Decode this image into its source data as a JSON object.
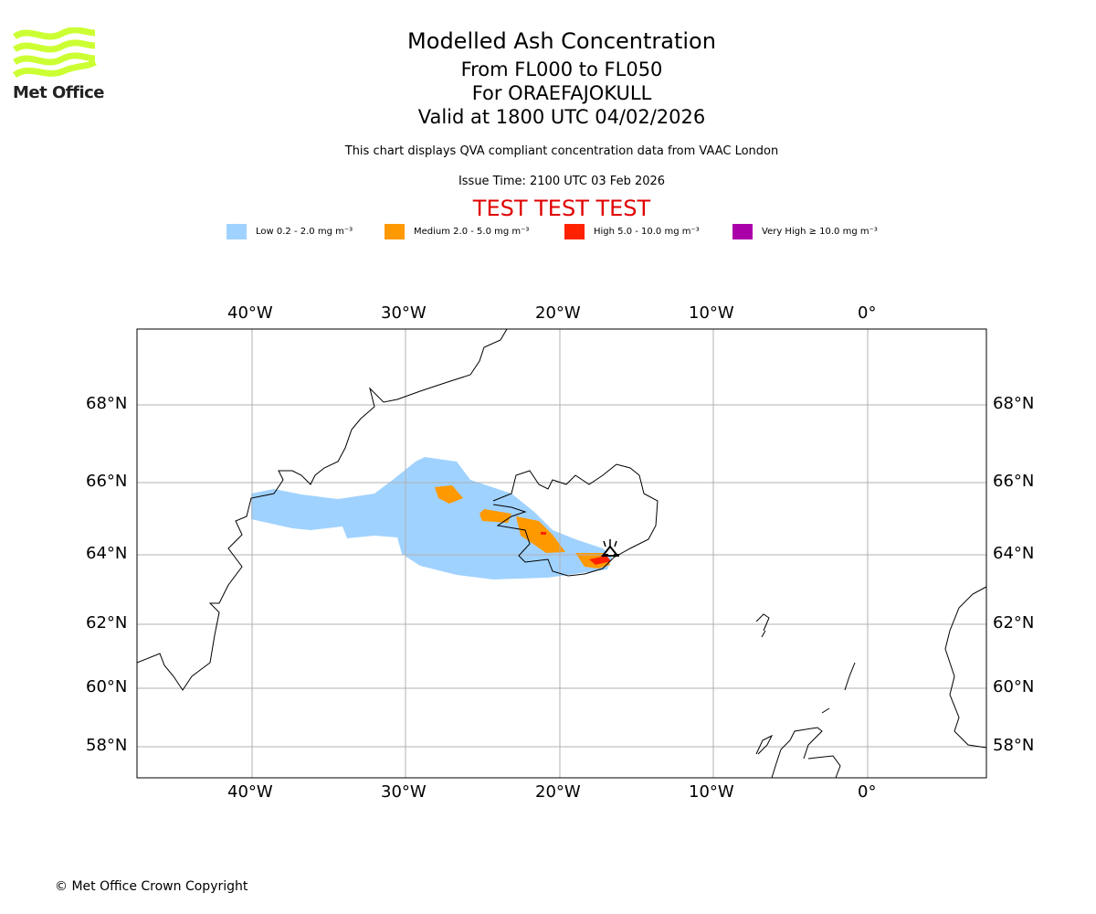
{
  "logo": {
    "text": "Met Office",
    "color": "#ccff33"
  },
  "title": {
    "line1": "Modelled Ash Concentration",
    "line2": "From FL000 to FL050",
    "line3": "For ORAEFAJOKULL",
    "line4": "Valid at 1800 UTC 04/02/2026"
  },
  "subtitle": "This chart displays QVA compliant concentration data from VAAC London",
  "issue_time": "Issue Time: 2100 UTC 03 Feb 2026",
  "test_banner": "TEST TEST TEST",
  "legend": [
    {
      "label": "Low 0.2 - 2.0 mg m⁻³",
      "color": "#a0d2ff"
    },
    {
      "label": "Medium 2.0 - 5.0 mg m⁻³",
      "color": "#ff9900"
    },
    {
      "label": "High 5.0 - 10.0 mg m⁻³",
      "color": "#ff2200"
    },
    {
      "label": "Very High ≥ 10.0 mg m⁻³",
      "color": "#aa00aa"
    }
  ],
  "map": {
    "lon_ticks": [
      "40°W",
      "30°W",
      "20°W",
      "10°W",
      "0°"
    ],
    "lat_ticks": [
      "68°N",
      "66°N",
      "64°N",
      "62°N",
      "60°N",
      "58°N"
    ],
    "volcano": "ORAEFAJOKULL"
  },
  "copyright": "© Met Office Crown Copyright"
}
